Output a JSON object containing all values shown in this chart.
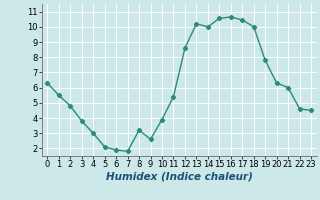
{
  "x": [
    0,
    1,
    2,
    3,
    4,
    5,
    6,
    7,
    8,
    9,
    10,
    11,
    12,
    13,
    14,
    15,
    16,
    17,
    18,
    19,
    20,
    21,
    22,
    23
  ],
  "y": [
    6.3,
    5.5,
    4.8,
    3.8,
    3.0,
    2.1,
    1.9,
    1.8,
    3.2,
    2.6,
    3.9,
    5.4,
    8.6,
    10.2,
    10.0,
    10.55,
    10.65,
    10.45,
    10.0,
    7.8,
    6.3,
    6.0,
    4.6,
    4.5
  ],
  "line_color": "#2e8b74",
  "marker": "D",
  "marker_size": 2.2,
  "linewidth": 1.0,
  "xlabel": "Humidex (Indice chaleur)",
  "xlim": [
    -0.5,
    23.5
  ],
  "ylim": [
    1.5,
    11.5
  ],
  "yticks": [
    2,
    3,
    4,
    5,
    6,
    7,
    8,
    9,
    10,
    11
  ],
  "xticks": [
    0,
    1,
    2,
    3,
    4,
    5,
    6,
    7,
    8,
    9,
    10,
    11,
    12,
    13,
    14,
    15,
    16,
    17,
    18,
    19,
    20,
    21,
    22,
    23
  ],
  "grid_color": "#ffffff",
  "bg_color": "#cce8e8",
  "xlabel_fontsize": 7.5,
  "tick_fontsize": 6.0
}
